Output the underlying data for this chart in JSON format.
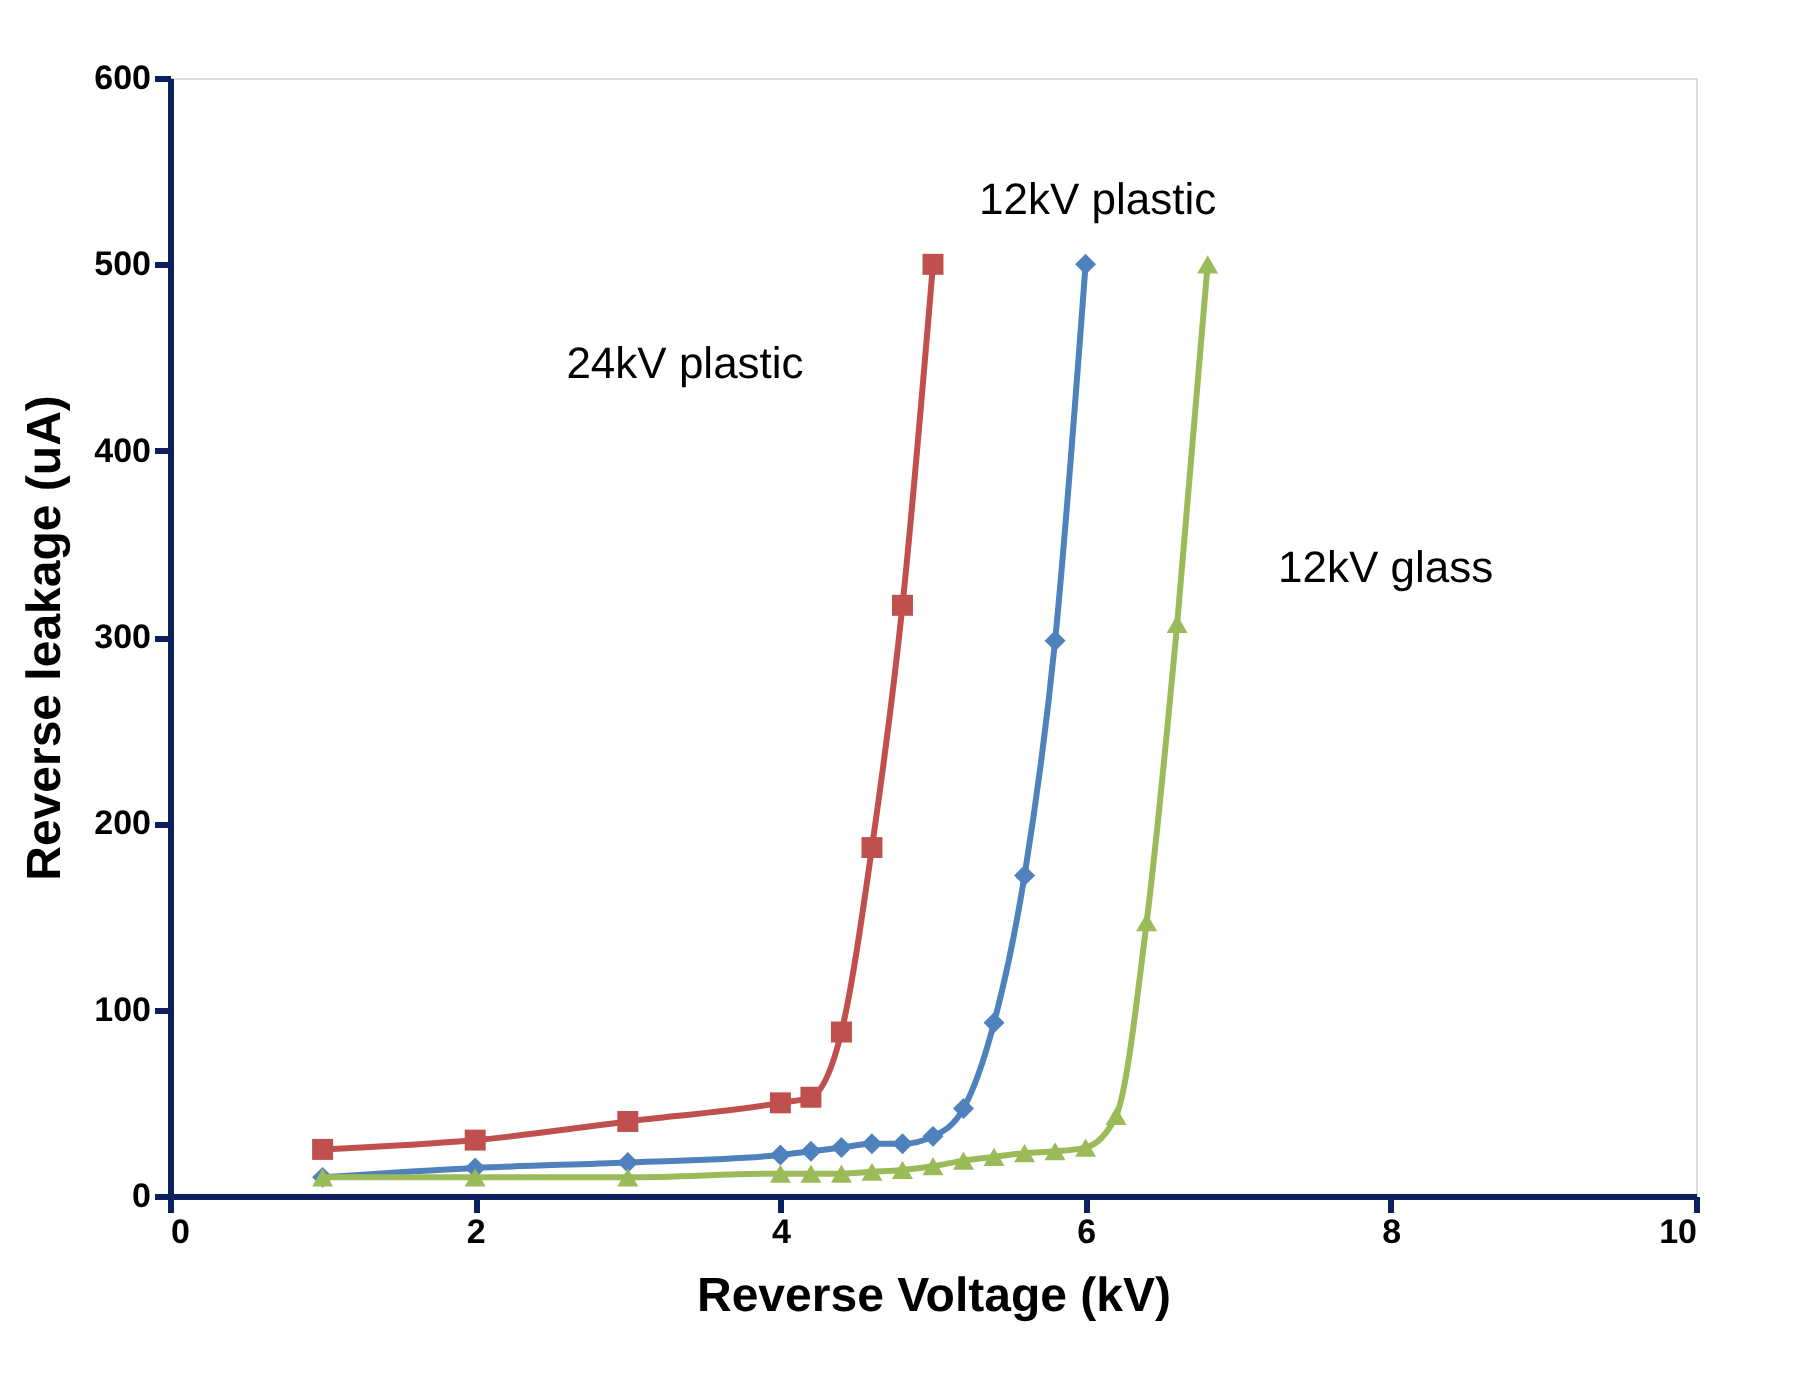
{
  "chart_data": {
    "type": "line",
    "xlabel": "Reverse Voltage (kV)",
    "ylabel": "Reverse leakage (uA)",
    "xlim": [
      0,
      10
    ],
    "xticks": [
      0,
      2,
      4,
      6,
      8,
      10
    ],
    "ylim": [
      0,
      600
    ],
    "yticks": [
      0,
      100,
      200,
      300,
      400,
      500,
      600
    ],
    "grid": false,
    "series": [
      {
        "name": "24kV plastic",
        "color": "#c0504d",
        "marker": "square",
        "x": [
          1,
          2,
          3,
          4,
          4.2,
          4.4,
          4.6,
          4.8,
          5
        ],
        "values": [
          25,
          30,
          40,
          50,
          53,
          88,
          187,
          317,
          500
        ]
      },
      {
        "name": "12kV plastic",
        "color": "#4f81bd",
        "marker": "diamond",
        "x": [
          1,
          2,
          3,
          4,
          4.2,
          4.4,
          4.6,
          4.8,
          5,
          5.2,
          5.4,
          5.6,
          5.8,
          6
        ],
        "values": [
          10,
          15,
          18,
          22,
          24,
          26,
          28,
          28,
          32,
          47,
          93,
          172,
          298,
          500
        ]
      },
      {
        "name": "12kV glass",
        "color": "#9bbb59",
        "marker": "triangle",
        "x": [
          1,
          2,
          3,
          4,
          4.2,
          4.4,
          4.6,
          4.8,
          5,
          5.2,
          5.4,
          5.6,
          5.8,
          6,
          6.2,
          6.4,
          6.6,
          6.8
        ],
        "values": [
          10,
          10,
          10,
          12,
          12,
          12,
          13,
          14,
          16,
          19,
          21,
          23,
          24,
          26,
          43,
          147,
          307,
          500
        ]
      }
    ]
  }
}
